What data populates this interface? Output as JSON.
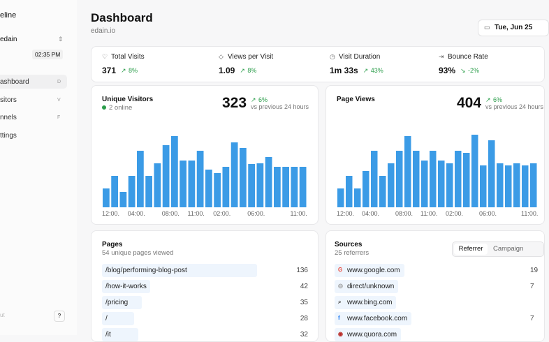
{
  "sidebar": {
    "title": "eline",
    "account": "edain",
    "time": "02:35 PM",
    "nav": [
      {
        "label": "ashboard",
        "key": "D"
      },
      {
        "label": "sitors",
        "key": "V"
      },
      {
        "label": "nnels",
        "key": "F"
      },
      {
        "label": "ttings"
      }
    ],
    "footer": "ut",
    "help": "?"
  },
  "header": {
    "title": "Dashboard",
    "subtitle": "edain.io",
    "date": "Tue, Jun 25"
  },
  "stats": [
    {
      "label": "Total Visits",
      "value": "371",
      "change": "8%"
    },
    {
      "label": "Views per Visit",
      "value": "1.09",
      "change": "8%"
    },
    {
      "label": "Visit Duration",
      "value": "1m 33s",
      "change": "43%"
    },
    {
      "label": "Bounce Rate",
      "value": "93%",
      "change": "-2%"
    }
  ],
  "charts": [
    {
      "type": "bar",
      "title": "Unique Visitors",
      "online": "2 online",
      "total": "323",
      "change": "6%",
      "comparison": "vs previous 24 hours",
      "color": "#3b9be6",
      "categories": [
        "12:00.",
        null,
        null,
        "04:00.",
        null,
        null,
        null,
        "08:00.",
        null,
        null,
        "11:00.",
        null,
        null,
        "02:00.",
        null,
        null,
        null,
        "06:00.",
        null,
        null,
        null,
        null,
        "11:00.",
        null
      ],
      "values": [
        27,
        45,
        22,
        45,
        81,
        45,
        63,
        89,
        102,
        67,
        67,
        81,
        54,
        49,
        58,
        93,
        85,
        62,
        63,
        72,
        58,
        58,
        58,
        58
      ]
    },
    {
      "type": "bar",
      "title": "Page Views",
      "total": "404",
      "change": "6%",
      "comparison": "vs previous 24 hours",
      "color": "#3b9be6",
      "categories": [
        "12:00.",
        null,
        null,
        "04:00.",
        null,
        null,
        null,
        "08:00.",
        null,
        null,
        "11:00.",
        null,
        null,
        "02:00.",
        null,
        null,
        null,
        "06:00.",
        null,
        null,
        null,
        null,
        "11:00.",
        null
      ],
      "values": [
        27,
        45,
        27,
        52,
        81,
        45,
        63,
        81,
        102,
        81,
        67,
        81,
        67,
        63,
        81,
        78,
        104,
        60,
        96,
        63,
        60,
        63,
        60,
        63
      ]
    }
  ],
  "pages": {
    "title": "Pages",
    "subtitle": "54 unique pages viewed",
    "rows": [
      {
        "path": "/blog/performing-blog-post",
        "count": 136
      },
      {
        "path": "/how-it-works",
        "count": 42
      },
      {
        "path": "/pricing",
        "count": 35
      },
      {
        "path": "/",
        "count": 28
      },
      {
        "path": "/it",
        "count": 32
      }
    ]
  },
  "sources": {
    "title": "Sources",
    "subtitle": "25 referrers",
    "tabs": [
      "Referrer",
      "Campaign"
    ],
    "rows": [
      {
        "name": "www.google.com",
        "count": "19"
      },
      {
        "name": "direct/unknown",
        "count": "7"
      },
      {
        "name": "www.bing.com"
      },
      {
        "name": "www.facebook.com",
        "count": "7"
      },
      {
        "name": "www.quora.com"
      }
    ]
  }
}
